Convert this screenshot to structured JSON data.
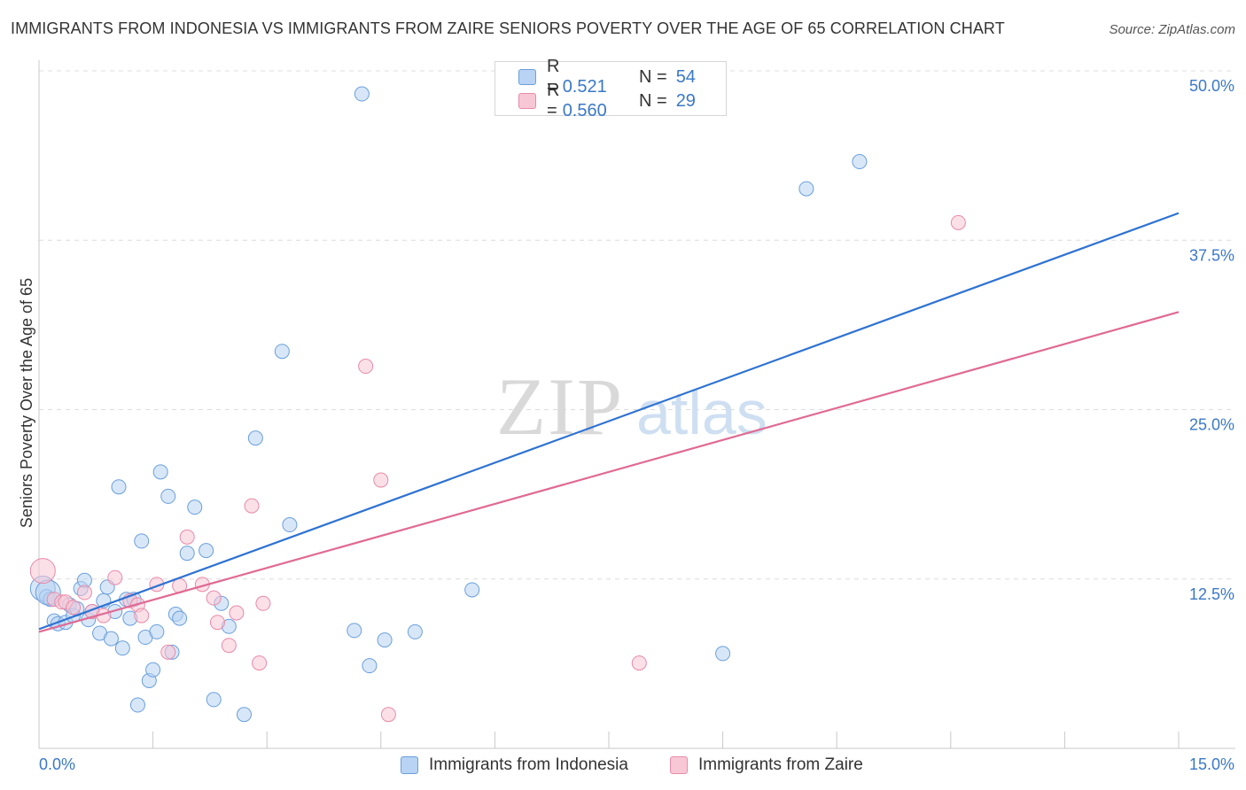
{
  "title": "IMMIGRANTS FROM INDONESIA VS IMMIGRANTS FROM ZAIRE SENIORS POVERTY OVER THE AGE OF 65 CORRELATION CHART",
  "source": "Source: ZipAtlas.com",
  "watermark": {
    "zip": "ZIP",
    "atlas": "atlas"
  },
  "colors": {
    "indonesia_fill": "#b8d3f3",
    "indonesia_stroke": "#6a9fdc",
    "indonesia_line": "#2e72d2",
    "zaire_fill": "#f8c7d6",
    "zaire_stroke": "#e88aa8",
    "zaire_line": "#e06a93",
    "axis_text": "#3a78c8",
    "grid": "#dcdcdc"
  },
  "legend": {
    "r_label": "R =",
    "n_label": "N =",
    "rows": [
      {
        "r": "0.521",
        "n": "54"
      },
      {
        "r": "0.560",
        "n": "29"
      }
    ]
  },
  "bottom_legend": [
    "Immigrants from Indonesia",
    "Immigrants from Zaire"
  ],
  "chart_data": {
    "type": "scatter",
    "xlabel": "",
    "ylabel": "Seniors Poverty Over the Age of 65",
    "xlim": [
      0,
      15
    ],
    "ylim": [
      0,
      50
    ],
    "x_tick_labels": [
      "0.0%",
      "15.0%"
    ],
    "y_tick_labels": [
      "12.5%",
      "25.0%",
      "37.5%",
      "50.0%"
    ],
    "y_ticks": [
      12.5,
      25,
      37.5,
      50
    ],
    "series": [
      {
        "name": "Immigrants from Indonesia",
        "r": 0.521,
        "n": 54,
        "trend": {
          "x": [
            0,
            15
          ],
          "y": [
            8.8,
            39.5
          ]
        },
        "points": [
          [
            0.05,
            11.8
          ],
          [
            0.1,
            11.2
          ],
          [
            0.15,
            11.0
          ],
          [
            0.2,
            9.4
          ],
          [
            0.25,
            9.2
          ],
          [
            0.35,
            9.3
          ],
          [
            0.4,
            10.6
          ],
          [
            0.45,
            9.8
          ],
          [
            0.5,
            10.3
          ],
          [
            0.55,
            11.8
          ],
          [
            0.6,
            12.4
          ],
          [
            0.65,
            9.5
          ],
          [
            0.7,
            10.1
          ],
          [
            0.8,
            8.5
          ],
          [
            0.85,
            10.9
          ],
          [
            0.9,
            11.9
          ],
          [
            0.95,
            8.1
          ],
          [
            1.0,
            10.1
          ],
          [
            1.05,
            19.3
          ],
          [
            1.1,
            7.4
          ],
          [
            1.15,
            11.0
          ],
          [
            1.2,
            9.6
          ],
          [
            1.25,
            11.0
          ],
          [
            1.3,
            3.2
          ],
          [
            1.35,
            15.3
          ],
          [
            1.4,
            8.2
          ],
          [
            1.45,
            5.0
          ],
          [
            1.5,
            5.8
          ],
          [
            1.55,
            8.6
          ],
          [
            1.6,
            20.4
          ],
          [
            1.7,
            18.6
          ],
          [
            1.75,
            7.1
          ],
          [
            1.8,
            9.9
          ],
          [
            1.85,
            9.6
          ],
          [
            1.95,
            14.4
          ],
          [
            2.05,
            17.8
          ],
          [
            2.2,
            14.6
          ],
          [
            2.3,
            3.6
          ],
          [
            2.4,
            10.7
          ],
          [
            2.5,
            9.0
          ],
          [
            2.7,
            2.5
          ],
          [
            2.85,
            22.9
          ],
          [
            3.2,
            29.3
          ],
          [
            3.3,
            16.5
          ],
          [
            4.15,
            8.7
          ],
          [
            4.25,
            48.3
          ],
          [
            4.35,
            6.1
          ],
          [
            4.55,
            8.0
          ],
          [
            4.95,
            8.6
          ],
          [
            5.7,
            11.7
          ],
          [
            9.0,
            7.0
          ],
          [
            10.1,
            41.3
          ],
          [
            10.8,
            43.3
          ],
          [
            0.12,
            11.5
          ]
        ]
      },
      {
        "name": "Immigrants from Zaire",
        "r": 0.56,
        "n": 29,
        "trend": {
          "x": [
            0,
            15
          ],
          "y": [
            8.6,
            32.2
          ]
        },
        "points": [
          [
            0.05,
            13.1
          ],
          [
            0.2,
            11.0
          ],
          [
            0.3,
            10.8
          ],
          [
            0.35,
            10.8
          ],
          [
            0.45,
            10.4
          ],
          [
            0.6,
            11.5
          ],
          [
            0.7,
            10.1
          ],
          [
            0.85,
            9.8
          ],
          [
            1.0,
            12.6
          ],
          [
            1.2,
            10.9
          ],
          [
            1.3,
            10.6
          ],
          [
            1.35,
            9.8
          ],
          [
            1.55,
            12.1
          ],
          [
            1.7,
            7.1
          ],
          [
            1.85,
            12.0
          ],
          [
            1.95,
            15.6
          ],
          [
            2.15,
            12.1
          ],
          [
            2.3,
            11.1
          ],
          [
            2.35,
            9.3
          ],
          [
            2.5,
            7.6
          ],
          [
            2.6,
            10.0
          ],
          [
            2.8,
            17.9
          ],
          [
            2.9,
            6.3
          ],
          [
            2.95,
            10.7
          ],
          [
            4.3,
            28.2
          ],
          [
            4.5,
            19.8
          ],
          [
            4.6,
            2.5
          ],
          [
            7.9,
            6.3
          ],
          [
            12.1,
            38.8
          ]
        ]
      }
    ]
  }
}
